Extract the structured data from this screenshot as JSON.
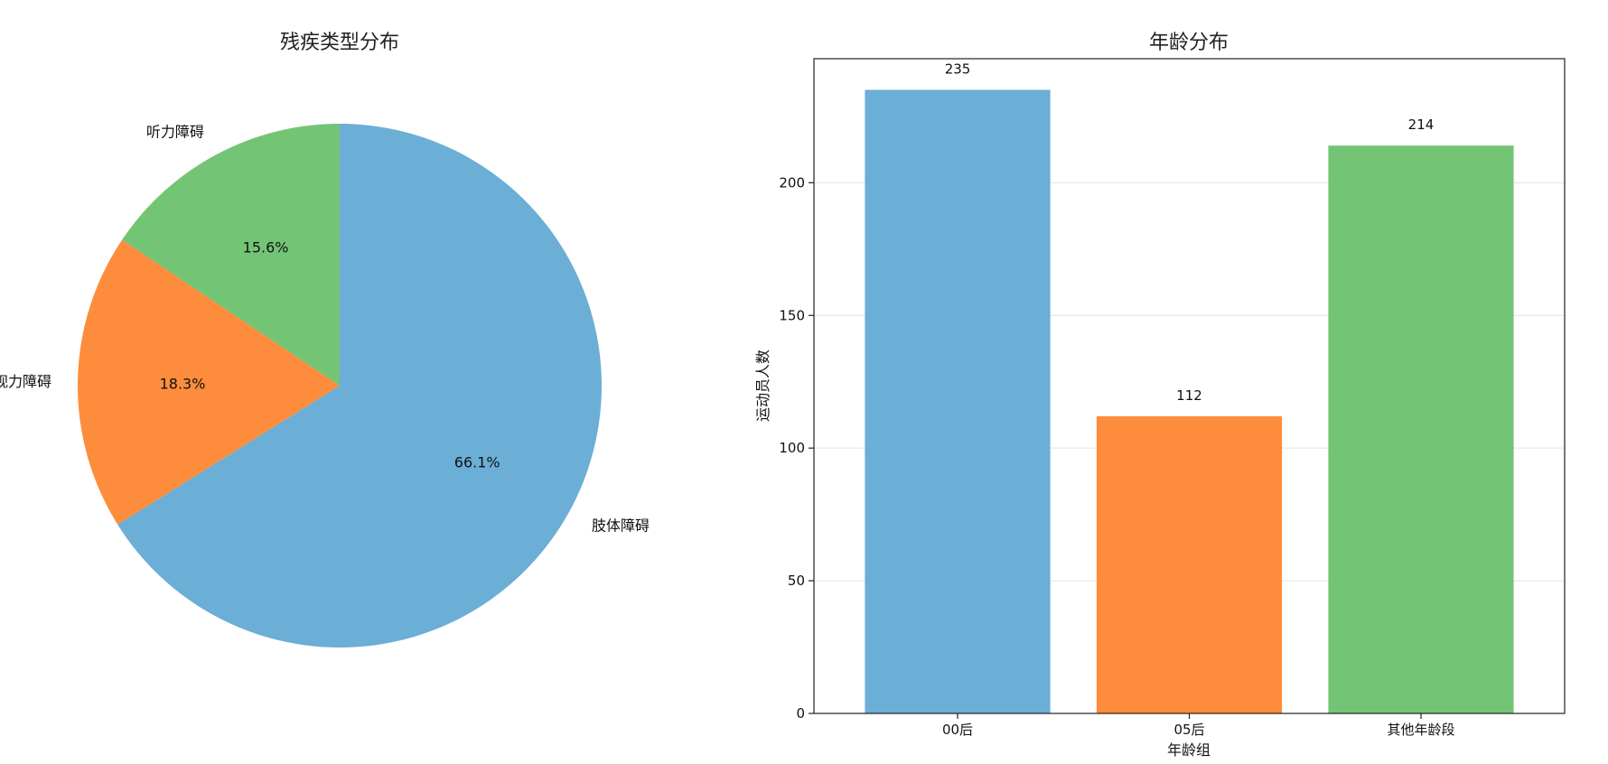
{
  "chart_data": [
    {
      "type": "pie",
      "title": "残疾类型分布",
      "categories": [
        "肢体障碍",
        "视力障碍",
        "听力障碍"
      ],
      "values": [
        66.1,
        18.3,
        15.6
      ],
      "percent_labels": [
        "66.1%",
        "18.3%",
        "15.6%"
      ],
      "colors": [
        "#6baed6",
        "#fd8d3c",
        "#74c476"
      ],
      "start_angle_deg": 90,
      "direction": "clockwise"
    },
    {
      "type": "bar",
      "title": "年龄分布",
      "categories": [
        "00后",
        "05后",
        "其他年龄段"
      ],
      "values": [
        235,
        112,
        214
      ],
      "colors": [
        "#6baed6",
        "#fd8d3c",
        "#74c476"
      ],
      "xlabel": "年龄组",
      "ylabel": "运动员人数",
      "ylim": [
        0,
        246.75
      ],
      "yticks": [
        0,
        50,
        100,
        150,
        200
      ],
      "grid": "y"
    }
  ]
}
